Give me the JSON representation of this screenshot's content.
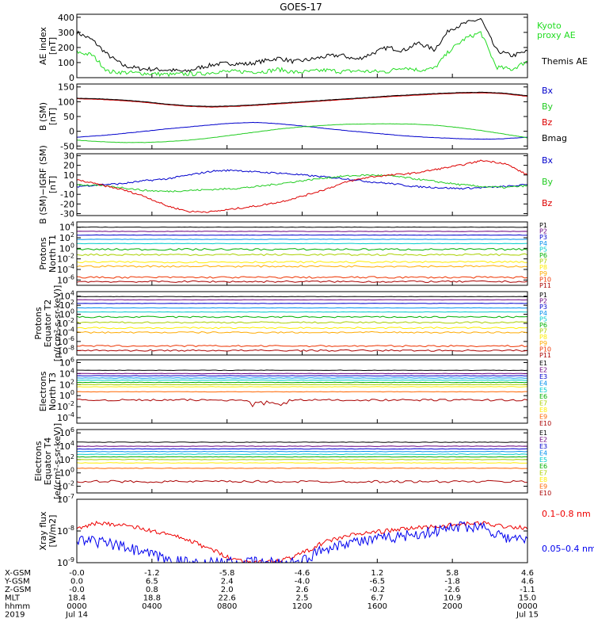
{
  "title": "GOES-17",
  "chart_data": [
    {
      "type": "line",
      "panel": "ae",
      "ylabel": [
        "AE index",
        "[nT]"
      ],
      "yticks": [
        "400",
        "300",
        "200",
        "100",
        "0"
      ],
      "ylim": [
        0,
        420
      ],
      "legend": [
        {
          "label": "Kyoto",
          "color": "#22dd22"
        },
        {
          "label": "proxy AE",
          "color": "#22dd22"
        },
        {
          "label": "Themis AE",
          "color": "#000000"
        }
      ],
      "series": [
        {
          "color": "#000000",
          "values": [
            300,
            250,
            150,
            80,
            60,
            55,
            50,
            40,
            70,
            90,
            95,
            90,
            110,
            130,
            105,
            120,
            140,
            150,
            120,
            160,
            200,
            180,
            230,
            185,
            320,
            360,
            390,
            180,
            145,
            175
          ]
        },
        {
          "color": "#22dd22",
          "values": [
            170,
            150,
            40,
            35,
            30,
            25,
            20,
            25,
            25,
            40,
            40,
            40,
            40,
            55,
            35,
            40,
            50,
            40,
            45,
            40,
            40,
            70,
            50,
            60,
            180,
            260,
            300,
            70,
            55,
            110
          ]
        }
      ]
    },
    {
      "type": "line",
      "panel": "bsm",
      "ylabel": [
        "B (SM)",
        "[nT]"
      ],
      "yticks": [
        "150",
        "100",
        "50",
        "0",
        "-50"
      ],
      "ylim": [
        -60,
        160
      ],
      "legend": [
        {
          "label": "Bx",
          "color": "#0000cc"
        },
        {
          "label": "By",
          "color": "#22cc22"
        },
        {
          "label": "Bz",
          "color": "#dd0000"
        },
        {
          "label": "Bmag",
          "color": "#000000"
        }
      ],
      "series": [
        {
          "color": "#0000cc",
          "values": [
            -20,
            -15,
            -8,
            0,
            8,
            15,
            22,
            28,
            30,
            25,
            18,
            10,
            2,
            -5,
            -12,
            -18,
            -22,
            -25,
            -27,
            -25,
            -20
          ]
        },
        {
          "color": "#22cc22",
          "values": [
            -30,
            -35,
            -38,
            -38,
            -35,
            -30,
            -22,
            -12,
            -2,
            8,
            15,
            20,
            24,
            25,
            25,
            24,
            20,
            12,
            2,
            -10,
            -22
          ]
        },
        {
          "color": "#dd0000",
          "values": [
            110,
            108,
            104,
            98,
            90,
            84,
            82,
            84,
            88,
            93,
            98,
            103,
            108,
            113,
            118,
            122,
            126,
            129,
            130,
            127,
            118
          ]
        },
        {
          "color": "#000000",
          "values": [
            112,
            110,
            106,
            100,
            92,
            86,
            84,
            86,
            90,
            95,
            100,
            105,
            110,
            115,
            120,
            124,
            128,
            131,
            132,
            129,
            120
          ]
        }
      ]
    },
    {
      "type": "line",
      "panel": "bigrf",
      "ylabel": [
        "B (SM)−IGRF (SM)",
        "[nT]"
      ],
      "yticks": [
        "30",
        "20",
        "10",
        "0",
        "-10",
        "-20",
        "-30"
      ],
      "ylim": [
        -32,
        32
      ],
      "legend": [
        {
          "label": "Bx",
          "color": "#0000cc"
        },
        {
          "label": "By",
          "color": "#22cc22"
        },
        {
          "label": "Bz",
          "color": "#dd0000"
        }
      ],
      "series": [
        {
          "color": "#0000cc",
          "values": [
            -2,
            0,
            1,
            4,
            6,
            10,
            14,
            15,
            13,
            12,
            10,
            8,
            6,
            3,
            1,
            -2,
            -3,
            -4,
            -3,
            -2,
            0
          ]
        },
        {
          "color": "#22cc22",
          "values": [
            0,
            -1,
            -3,
            -6,
            -7,
            -6,
            -5,
            -4,
            -2,
            1,
            4,
            7,
            9,
            10,
            9,
            6,
            3,
            0,
            -2,
            -3,
            -1
          ]
        },
        {
          "color": "#dd0000",
          "values": [
            5,
            0,
            -5,
            -12,
            -22,
            -28,
            -28,
            -25,
            -22,
            -18,
            -12,
            -5,
            3,
            8,
            10,
            12,
            16,
            20,
            25,
            22,
            10
          ]
        }
      ]
    },
    {
      "type": "line",
      "panel": "p_t1",
      "ylabel": [
        "Protons",
        "North T1"
      ],
      "yticks": [
        "10^4",
        "10^2",
        "10^0",
        "10^-2",
        "10^-4",
        "10^-6"
      ],
      "ylim": [
        -7,
        5
      ],
      "log": true,
      "legend": [
        {
          "label": "P1",
          "color": "#000000",
          "level": 4.0
        },
        {
          "label": "P2",
          "color": "#6a0080",
          "level": 3.2
        },
        {
          "label": "P3",
          "color": "#0000cc",
          "level": 2.5
        },
        {
          "label": "P4",
          "color": "#0090ee",
          "level": 1.7
        },
        {
          "label": "P5",
          "color": "#00cccc",
          "level": 0.9
        },
        {
          "label": "P6",
          "color": "#00b000",
          "level": -0.2
        },
        {
          "label": "P7",
          "color": "#aad000",
          "level": -1.2
        },
        {
          "label": "P8",
          "color": "#ffee00",
          "level": -2.6
        },
        {
          "label": "P9",
          "color": "#ffaa00",
          "level": -3.4
        },
        {
          "label": "P10",
          "color": "#ee3300",
          "level": -5.5
        },
        {
          "label": "P11",
          "color": "#aa0000",
          "level": -6.3
        }
      ]
    },
    {
      "type": "line",
      "panel": "p_t2",
      "ylabel": [
        "Protons",
        "Equator T2",
        "[p/(cm²-s-sr-keV)]"
      ],
      "yticks": [
        "10^4",
        "10^2",
        "10^0",
        "10^-2",
        "10^-4",
        "10^-6",
        "10^-8"
      ],
      "ylim": [
        -9,
        5
      ],
      "log": true,
      "legend": [
        {
          "label": "P1",
          "color": "#000000",
          "level": 3.9
        },
        {
          "label": "P2",
          "color": "#6a0080",
          "level": 3.2
        },
        {
          "label": "P3",
          "color": "#0000cc",
          "level": 2.4
        },
        {
          "label": "P4",
          "color": "#0090ee",
          "level": 1.4
        },
        {
          "label": "P5",
          "color": "#00cccc",
          "level": 0.5
        },
        {
          "label": "P6",
          "color": "#00b000",
          "level": -0.6
        },
        {
          "label": "P7",
          "color": "#aad000",
          "level": -1.8
        },
        {
          "label": "P8",
          "color": "#ffee00",
          "level": -3.0
        },
        {
          "label": "P9",
          "color": "#ffaa00",
          "level": -4.0
        },
        {
          "label": "P10",
          "color": "#ee3300",
          "level": -7.0
        },
        {
          "label": "P11",
          "color": "#aa0000",
          "level": -8.0
        }
      ]
    },
    {
      "type": "line",
      "panel": "e_t3",
      "ylabel": [
        "Electrons",
        "North T3"
      ],
      "yticks": [
        "10^6",
        "10^4",
        "10^2",
        "10^0",
        "10^-2",
        "10^-4"
      ],
      "ylim": [
        -5,
        6.5
      ],
      "log": true,
      "legend": [
        {
          "label": "E1",
          "color": "#000000",
          "level": 4.6
        },
        {
          "label": "E2",
          "color": "#6a0080",
          "level": 4.0
        },
        {
          "label": "E3",
          "color": "#0000cc",
          "level": 3.6
        },
        {
          "label": "E4",
          "color": "#0090ee",
          "level": 3.2
        },
        {
          "label": "E5",
          "color": "#00cccc",
          "level": 2.8
        },
        {
          "label": "E6",
          "color": "#00b000",
          "level": 2.4
        },
        {
          "label": "E7",
          "color": "#aad000",
          "level": 2.0
        },
        {
          "label": "E8",
          "color": "#ffee00",
          "level": 1.6
        },
        {
          "label": "E9",
          "color": "#ff6600",
          "level": 0.7
        },
        {
          "label": "E10",
          "color": "#aa0000",
          "level": -0.8
        }
      ]
    },
    {
      "type": "line",
      "panel": "e_t4",
      "ylabel": [
        "Electrons",
        "Equator T4",
        "[e/(cm²-s-sr-keV)]"
      ],
      "yticks": [
        "10^6",
        "10^4",
        "10^2",
        "10^0",
        "10^-2"
      ],
      "ylim": [
        -3,
        6.5
      ],
      "log": true,
      "legend": [
        {
          "label": "E1",
          "color": "#000000",
          "level": 4.6
        },
        {
          "label": "E2",
          "color": "#6a0080",
          "level": 4.0
        },
        {
          "label": "E3",
          "color": "#0000cc",
          "level": 3.6
        },
        {
          "label": "E4",
          "color": "#0090ee",
          "level": 3.2
        },
        {
          "label": "E5",
          "color": "#00cccc",
          "level": 2.8
        },
        {
          "label": "E6",
          "color": "#00b000",
          "level": 2.4
        },
        {
          "label": "E7",
          "color": "#aad000",
          "level": 2.0
        },
        {
          "label": "E8",
          "color": "#ffee00",
          "level": 1.5
        },
        {
          "label": "E9",
          "color": "#ff6600",
          "level": 0.7
        },
        {
          "label": "E10",
          "color": "#aa0000",
          "level": -1.3
        }
      ]
    },
    {
      "type": "line",
      "panel": "xray",
      "ylabel": [
        "Xray flux",
        "[W/m2]"
      ],
      "yticks": [
        "10^-7",
        "10^-8",
        "10^-9"
      ],
      "ylim": [
        -9,
        -7
      ],
      "log": true,
      "legend": [
        {
          "label": "0.1–0.8 nm",
          "color": "#ee0000"
        },
        {
          "label": "0.05–0.4 nm",
          "color": "#0000ee"
        }
      ],
      "series": [
        {
          "color": "#ee0000",
          "values": [
            -7.9,
            -7.75,
            -7.8,
            -7.95,
            -8.1,
            -8.3,
            -8.6,
            -8.9,
            -9.0,
            -8.95,
            -8.7,
            -8.35,
            -8.15,
            -8.05,
            -7.98,
            -7.9,
            -7.85,
            -7.8,
            -7.75,
            -7.85,
            -7.9
          ]
        },
        {
          "color": "#0000ee",
          "values": [
            -8.3,
            -8.35,
            -8.5,
            -8.7,
            -8.9,
            -9.0,
            -9.0,
            -9.0,
            -9.0,
            -9.0,
            -8.95,
            -8.55,
            -8.35,
            -8.3,
            -8.2,
            -8.1,
            -8.0,
            -7.85,
            -7.85,
            -8.2,
            -8.3
          ]
        }
      ]
    }
  ],
  "xaxis": {
    "rows": [
      {
        "label": "X-GSM",
        "values": [
          "-0.0",
          "-1.2",
          "-5.8",
          "-4.6",
          "1.2",
          "5.8",
          "4.6"
        ]
      },
      {
        "label": "Y-GSM",
        "values": [
          "0.0",
          "6.5",
          "2.4",
          "-4.0",
          "-6.5",
          "-1.8",
          "4.6"
        ]
      },
      {
        "label": "Z-GSM",
        "values": [
          "-0.0",
          "0.8",
          "2.0",
          "2.6",
          "-0.2",
          "-2.6",
          "-1.1"
        ]
      },
      {
        "label": "MLT",
        "values": [
          "18.4",
          "18.8",
          "22.6",
          "2.5",
          "6.7",
          "10.9",
          "15.0"
        ]
      },
      {
        "label": "hhmm",
        "values": [
          "0000",
          "0400",
          "0800",
          "1200",
          "1600",
          "2000",
          "0000"
        ]
      },
      {
        "label": "2019",
        "values": [
          "Jul 14",
          "",
          "",
          "",
          "",
          "",
          "Jul 15"
        ]
      }
    ]
  }
}
